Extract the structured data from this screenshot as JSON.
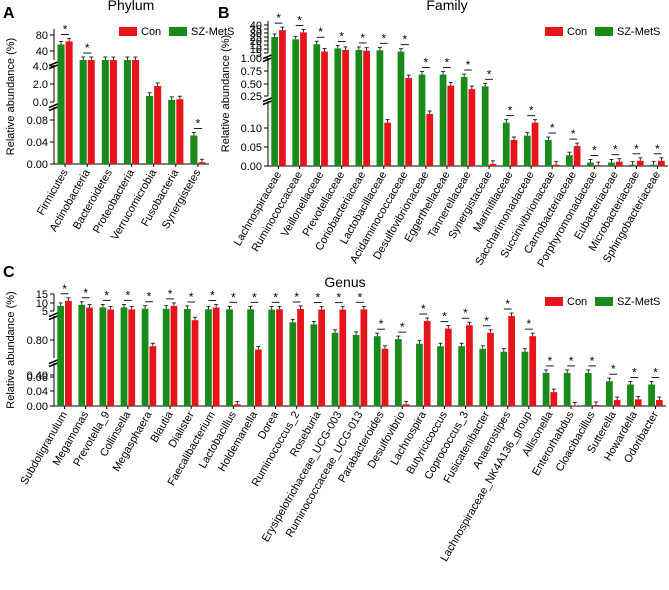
{
  "colors": {
    "con": "#e8141c",
    "szmets": "#1a8a1a",
    "axis": "#000000"
  },
  "legend": {
    "con": "Con",
    "szmets": "SZ-MetS"
  },
  "chart_data": [
    {
      "id": "A",
      "panel_label": "A",
      "type": "bar",
      "title": "Phylum",
      "ylabel": "Relative abundance (%)",
      "segments": [
        {
          "range": [
            0,
            0.16
          ],
          "ticks": [
            "0.00",
            "0.04",
            "0.08"
          ]
        },
        {
          "range": [
            0,
            6
          ],
          "ticks": [
            "0.0",
            "2.0",
            "4.0"
          ]
        },
        {
          "range": [
            40,
            90
          ],
          "ticks": [
            "40",
            "80"
          ]
        }
      ],
      "categories": [
        "Firmicutes",
        "Actinobacteria",
        "Bacteroidetes",
        "Proteobacteria",
        "Verrucomicrobia",
        "Fusobacteria",
        "Synergistetes"
      ],
      "series": [
        {
          "name": "SZ-MetS",
          "values": [
            65,
            12,
            10.5,
            9.5,
            1.0,
            0.35,
            0.08
          ]
        },
        {
          "name": "Con",
          "values": [
            70,
            8.5,
            10.0,
            8.5,
            2.6,
            0.45,
            0.005
          ]
        }
      ],
      "significant": [
        true,
        true,
        false,
        false,
        false,
        false,
        true
      ],
      "legend_position": "top-right"
    },
    {
      "id": "B",
      "panel_label": "B",
      "type": "bar",
      "title": "Family",
      "ylabel": "Relative abundance (%)",
      "segments": [
        {
          "range": [
            0,
            0.15
          ],
          "ticks": [
            "0.00",
            "0.05",
            "0.10"
          ]
        },
        {
          "range": [
            0,
            1.1
          ],
          "ticks": [
            "0.25",
            "0.50",
            "0.75",
            "1.00"
          ]
        },
        {
          "range": [
            0,
            42
          ],
          "ticks": [
            "5",
            "10",
            "15",
            "20",
            "25",
            "30",
            "35",
            "40"
          ]
        }
      ],
      "categories": [
        "Lachnospiraceae",
        "Ruminococcaceae",
        "Veillonellaceae",
        "Prevotellaceae",
        "Coriobacteriaceae",
        "Lactobacillaceae",
        "Acidaminococcaceae",
        "Desulfovibrionaceae",
        "Eggerthellaceae",
        "Tannerellaceae",
        "Synergistaceae",
        "Marinifilaceae",
        "Saccharimonadaceae",
        "Succinivibrionaceae",
        "Carnobacteriaceae",
        "Porphyromonadaceae",
        "Eubacteriaceae",
        "Microbacteriaceae",
        "Sphingobacteriaceae"
      ],
      "series": [
        {
          "name": "SZ-MetS",
          "values": [
            21,
            18,
            11.5,
            6,
            4,
            3.5,
            1.8,
            0.62,
            0.62,
            0.55,
            0.28,
            0.1,
            0.07,
            0.06,
            0.025,
            0.008,
            0.008,
            0.003,
            0.003
          ]
        },
        {
          "name": "Con",
          "values": [
            30,
            27,
            2,
            4,
            3,
            0.1,
            0.52,
            0.12,
            0.3,
            0.2,
            0.005,
            0.06,
            0.1,
            0.003,
            0.046,
            0.002,
            0.01,
            0.012,
            0.012
          ]
        }
      ],
      "significant": [
        true,
        true,
        true,
        true,
        true,
        true,
        true,
        true,
        true,
        true,
        true,
        true,
        true,
        true,
        true,
        true,
        true,
        true,
        true
      ],
      "legend_position": "top-right"
    },
    {
      "id": "C",
      "panel_label": "C",
      "type": "bar",
      "title": "Genus",
      "ylabel": "Relative abundance (%)",
      "segments": [
        {
          "range": [
            0,
            0.13
          ],
          "ticks": [
            "0.00",
            "0.04",
            "0.08"
          ]
        },
        {
          "range": [
            0,
            1.0
          ],
          "ticks": [
            "0.40",
            "0.80"
          ]
        },
        {
          "range": [
            0,
            15
          ],
          "ticks": [
            "5",
            "10",
            "15"
          ]
        }
      ],
      "categories": [
        "Subdoligranulum",
        "Megamonas",
        "Prevotella_9",
        "Collinsella",
        "Megasphaera",
        "Blautia",
        "Dialister",
        "Faecalibacterium",
        "Lactobacillus",
        "Holdemanella",
        "Dorea",
        "Ruminococcus_2",
        "Roseburia",
        "Erysipelotrichaceae_UCG-003",
        "Ruminococcaceae_UCG-013",
        "Parabacteroides",
        "Desulfovibrio",
        "Lachnospira",
        "Butyricicoccus",
        "Coprococcus_3",
        "Fusicatenibacter",
        "Anaerostipes",
        "Lachnospiraceae_NK4A136_group",
        "Allisonella",
        "Enterorhabdus",
        "Cloacibacillus",
        "Sutterella",
        "Howardella",
        "Odoribacter"
      ],
      "series": [
        {
          "name": "SZ-MetS",
          "values": [
            4.5,
            5.5,
            3.2,
            3.2,
            2.0,
            2.0,
            1.8,
            1.5,
            1.5,
            1.5,
            1.2,
            0.85,
            0.8,
            0.6,
            0.55,
            0.52,
            0.45,
            0.34,
            0.28,
            0.28,
            0.22,
            0.15,
            0.15,
            0.1,
            0.1,
            0.1,
            0.075,
            0.065,
            0.065
          ]
        },
        {
          "name": "Con",
          "values": [
            9.0,
            3.0,
            1.3,
            1.4,
            0.28,
            4.5,
            0.9,
            3.0,
            0.005,
            0.2,
            1.5,
            1.8,
            1.3,
            1.2,
            1.5,
            0.22,
            0.005,
            0.88,
            0.7,
            0.78,
            0.6,
            1.0,
            0.52,
            0.042,
            0.001,
            0.003,
            0.018,
            0.02,
            0.018
          ]
        }
      ],
      "significant": [
        true,
        true,
        true,
        true,
        true,
        true,
        true,
        true,
        true,
        true,
        true,
        true,
        true,
        true,
        true,
        true,
        true,
        true,
        true,
        true,
        true,
        true,
        true,
        true,
        true,
        true,
        true,
        true,
        true
      ],
      "legend_position": "top-right"
    }
  ]
}
